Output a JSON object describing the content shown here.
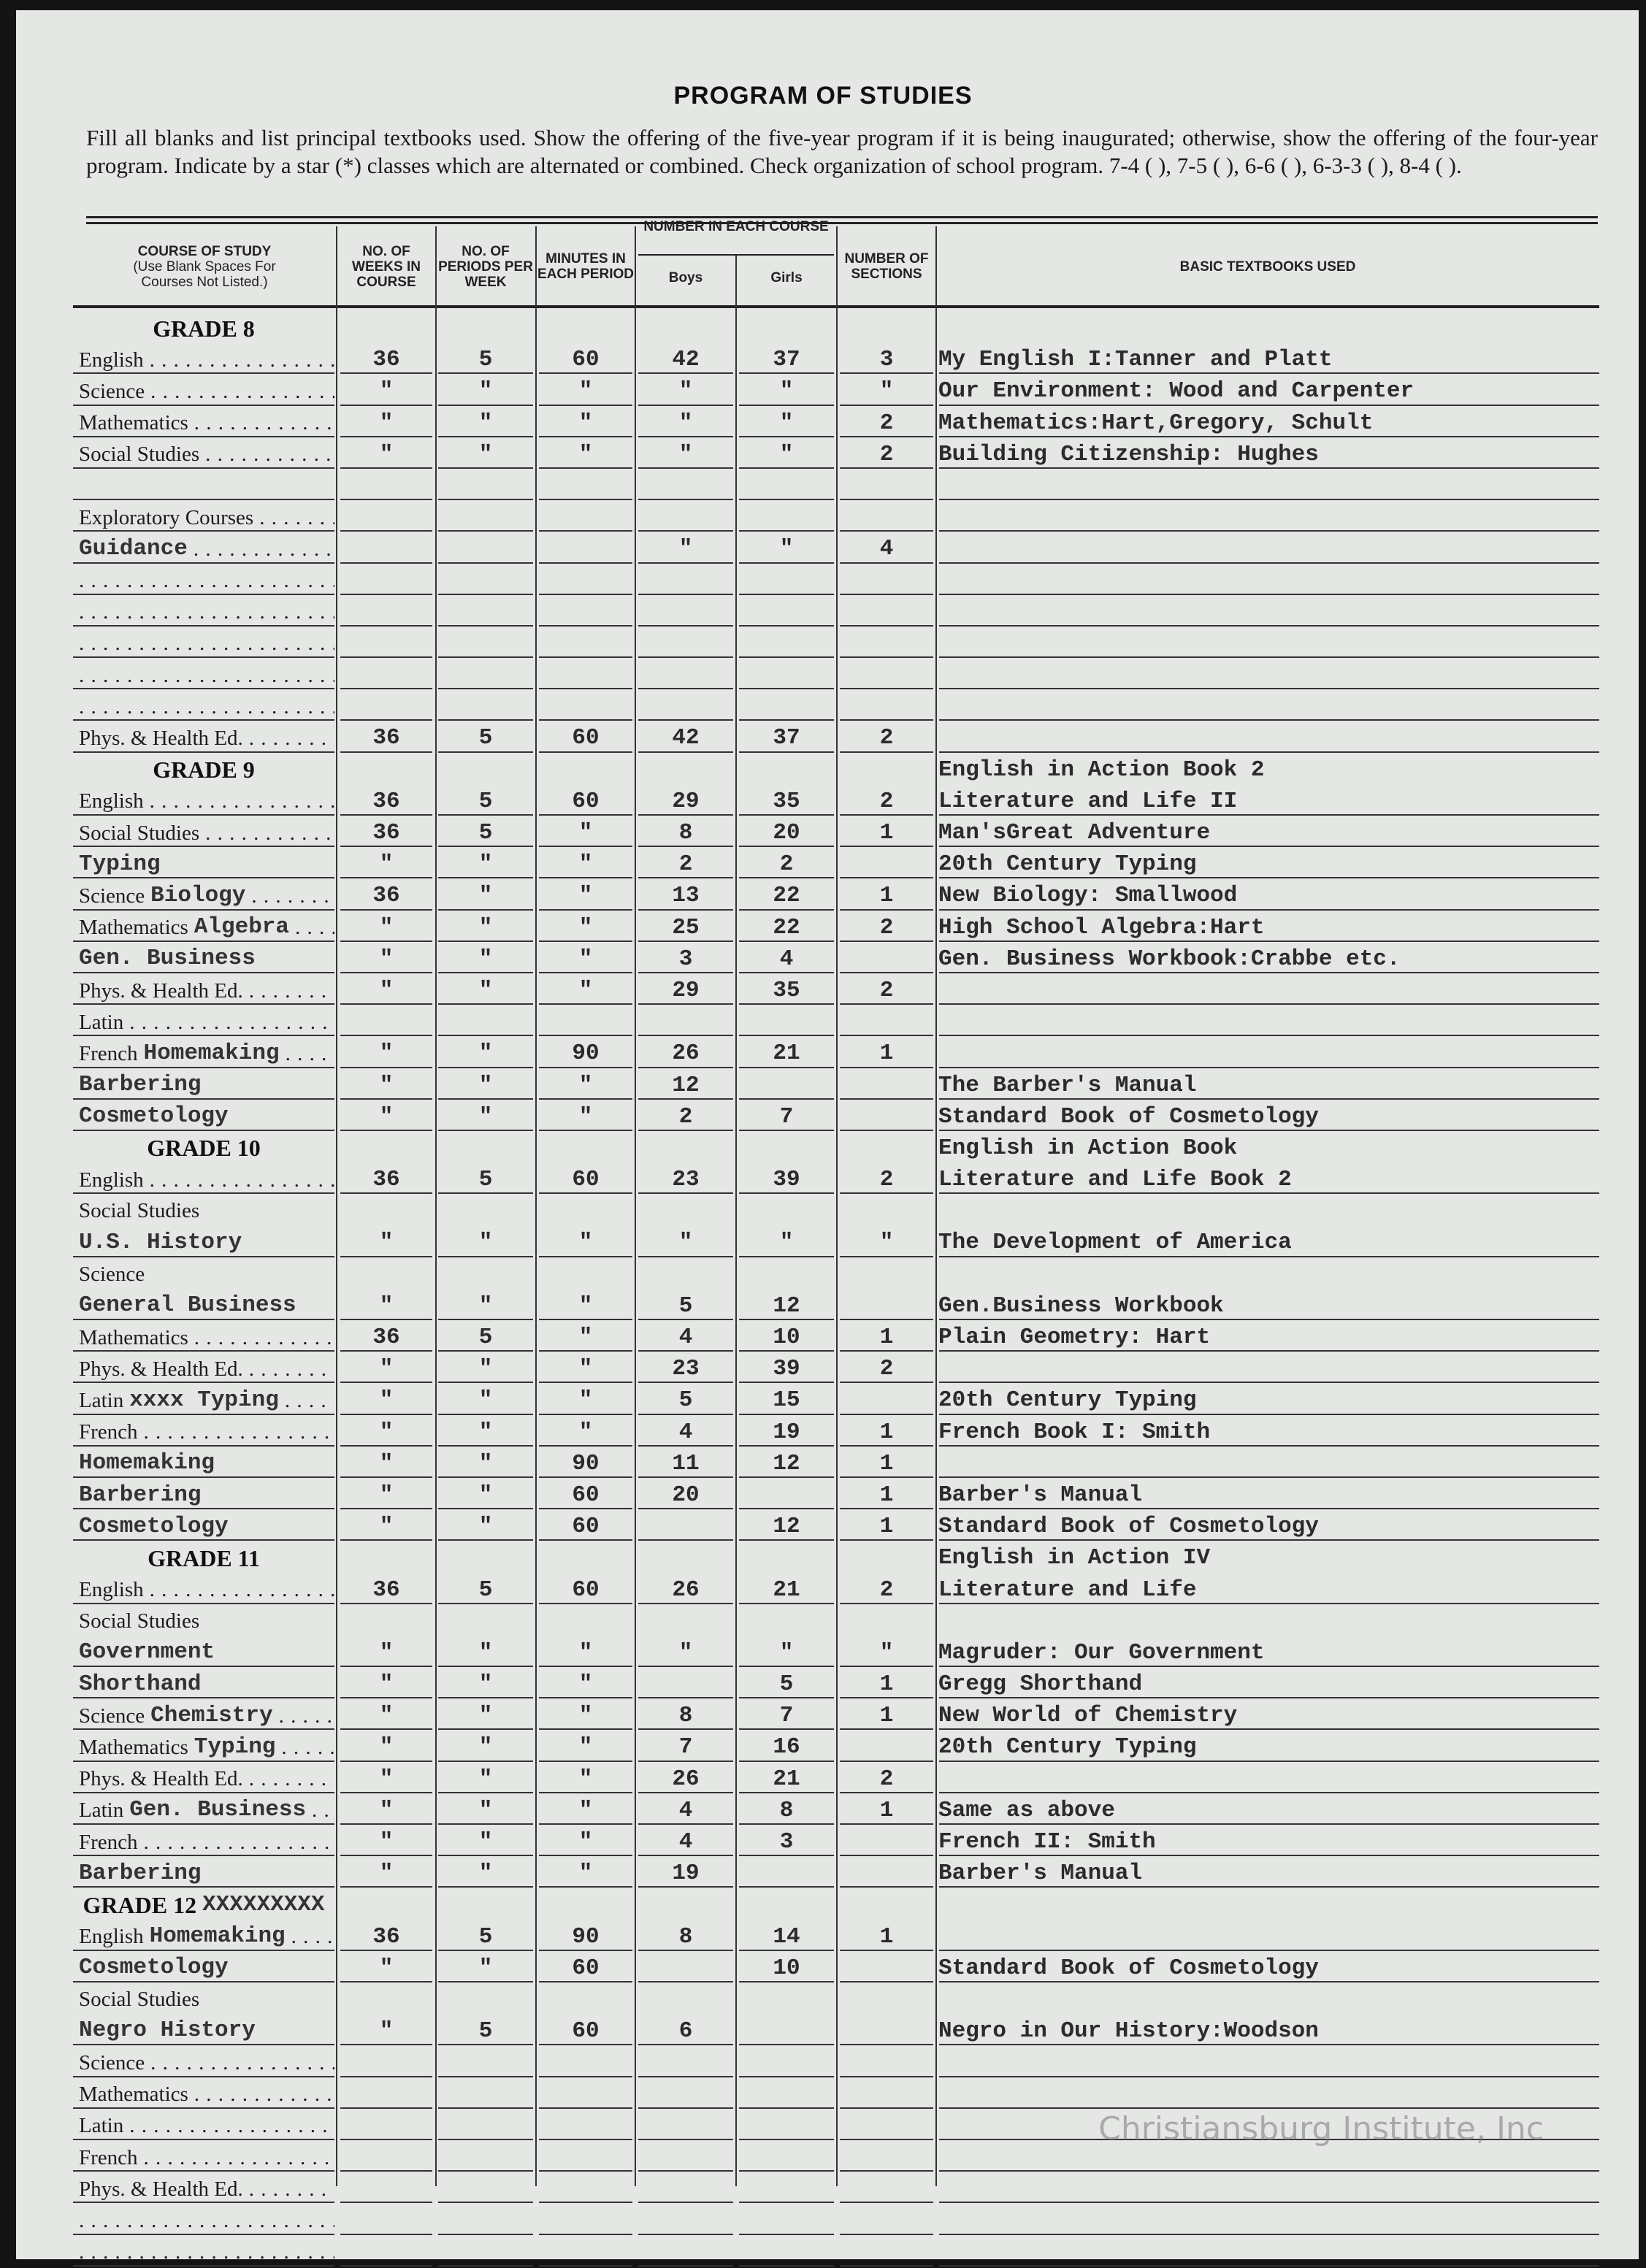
{
  "title": "PROGRAM OF STUDIES",
  "instructions": "Fill all blanks and list principal textbooks used. Show the offering of the five-year program if it is being inaugurated; otherwise, show the offering of the four-year program. Indicate by a star (*) classes which are alternated or combined. Check organization of school program. 7-4 (   ), 7-5 (   ), 6-6 (   ), 6-3-3 (   ), 8-4 (   ).",
  "headers": {
    "course": "COURSE OF STUDY",
    "course_note": "(Use Blank Spaces For Courses Not Listed.)",
    "weeks": "NO. OF WEEKS IN COURSE",
    "periods": "NO. OF PERIODS PER WEEK",
    "minutes": "MINUTES IN EACH PERIOD",
    "number_each": "NUMBER IN EACH COURSE",
    "boys": "Boys",
    "girls": "Girls",
    "sections": "NUMBER OF SECTIONS",
    "textbooks": "BASIC TEXTBOOKS USED"
  },
  "rows": [
    {
      "grade": "GRADE 8"
    },
    {
      "label": "English",
      "v": [
        "36",
        "5",
        "60",
        "42",
        "37",
        "3"
      ],
      "book": "My English I:Tanner and Platt"
    },
    {
      "label": "Science",
      "v": [
        "\"",
        "\"",
        "\"",
        "\"",
        "\"",
        "\""
      ],
      "book": "Our Environment: Wood and Carpenter"
    },
    {
      "label": "Mathematics",
      "v": [
        "\"",
        "\"",
        "\"",
        "\"",
        "\"",
        "2"
      ],
      "book": "Mathematics:Hart,Gregory, Schult"
    },
    {
      "label": "Social Studies",
      "v": [
        "\"",
        "\"",
        "\"",
        "\"",
        "\"",
        "2"
      ],
      "book": "Building Citizenship: Hughes"
    },
    {},
    {
      "label": "Exploratory Courses"
    },
    {
      "dots": true,
      "typed": "Guidance",
      "v": [
        "",
        "",
        "",
        "\"",
        "\"",
        "4"
      ]
    },
    {
      "dots": true
    },
    {
      "dots": true
    },
    {
      "dots": true
    },
    {
      "dots": true
    },
    {
      "dots": true
    },
    {
      "label": "Phys. & Health Ed.",
      "v": [
        "36",
        "5",
        "60",
        "42",
        "37",
        "2"
      ]
    },
    {
      "grade": "GRADE 9",
      "book": "English in Action Book 2"
    },
    {
      "label": "English",
      "v": [
        "36",
        "5",
        "60",
        "29",
        "35",
        "2"
      ],
      "book": "Literature and Life II"
    },
    {
      "label": "Social Studies",
      "v": [
        "36",
        "5",
        "\"",
        "8",
        "20",
        "1"
      ],
      "book": "Man'sGreat Adventure"
    },
    {
      "typed": "Typing",
      "v": [
        "\"",
        "\"",
        "\"",
        "2",
        "2",
        ""
      ],
      "book": "20th Century Typing"
    },
    {
      "label": "Science",
      "typed": "Biology",
      "v": [
        "36",
        "\"",
        "\"",
        "13",
        "22",
        "1"
      ],
      "book": "New Biology: Smallwood"
    },
    {
      "label": "Mathematics",
      "typed": "Algebra",
      "v": [
        "\"",
        "\"",
        "\"",
        "25",
        "22",
        "2"
      ],
      "book": "High School Algebra:Hart"
    },
    {
      "typed": "Gen. Business",
      "v": [
        "\"",
        "\"",
        "\"",
        "3",
        "4",
        ""
      ],
      "book": "Gen. Business Workbook:Crabbe etc."
    },
    {
      "label": "Phys. & Health Ed.",
      "v": [
        "\"",
        "\"",
        "\"",
        "29",
        "35",
        "2"
      ]
    },
    {
      "label": "Latin"
    },
    {
      "label": "French",
      "typed": "Homemaking",
      "v": [
        "\"",
        "\"",
        "90",
        "26",
        "21",
        "1"
      ]
    },
    {
      "typed": "Barbering",
      "v": [
        "\"",
        "\"",
        "\"",
        "12",
        "",
        ""
      ],
      "book": "The Barber's Manual"
    },
    {
      "typed": "Cosmetology",
      "v": [
        "\"",
        "\"",
        "\"",
        "2",
        "7",
        ""
      ],
      "book": "Standard Book of Cosmetology"
    },
    {
      "grade": "GRADE 10",
      "book": "English in Action Book"
    },
    {
      "label": "English",
      "v": [
        "36",
        "5",
        "60",
        "23",
        "39",
        "2"
      ],
      "book": "Literature and Life Book 2"
    },
    {
      "label": "Social Studies",
      "typed": "U.S. History",
      "v": [
        "\"",
        "\"",
        "\"",
        "\"",
        "\"",
        "\""
      ],
      "book": "The Development of America"
    },
    {
      "label": "Science",
      "typed": "General Business",
      "v": [
        "\"",
        "\"",
        "\"",
        "5",
        "12",
        ""
      ],
      "book": "Gen.Business Workbook"
    },
    {
      "label": "Mathematics",
      "v": [
        "36",
        "5",
        "\"",
        "4",
        "10",
        "1"
      ],
      "book": "Plain Geometry: Hart"
    },
    {
      "label": "Phys. & Health Ed.",
      "v": [
        "\"",
        "\"",
        "\"",
        "23",
        "39",
        "2"
      ]
    },
    {
      "label": "Latin",
      "typed": "xxxx Typing",
      "v": [
        "\"",
        "\"",
        "\"",
        "5",
        "15",
        ""
      ],
      "book": "20th Century Typing"
    },
    {
      "label": "French",
      "v": [
        "\"",
        "\"",
        "\"",
        "4",
        "19",
        "1"
      ],
      "book": "French Book I: Smith"
    },
    {
      "typed": "Homemaking",
      "v": [
        "\"",
        "\"",
        "90",
        "11",
        "12",
        "1"
      ]
    },
    {
      "typed": "Barbering",
      "v": [
        "\"",
        "\"",
        "60",
        "20",
        "",
        "1"
      ],
      "book": "Barber's Manual"
    },
    {
      "typed": "Cosmetology",
      "v": [
        "\"",
        "\"",
        "60",
        "",
        "12",
        "1"
      ],
      "book": "Standard Book of Cosmetology"
    },
    {
      "grade": "GRADE 11",
      "book": "English in Action IV"
    },
    {
      "label": "English",
      "v": [
        "36",
        "5",
        "60",
        "26",
        "21",
        "2"
      ],
      "book": "Literature and Life"
    },
    {
      "label": "Social Studies",
      "typed": "Government",
      "v": [
        "\"",
        "\"",
        "\"",
        "\"",
        "\"",
        "\""
      ],
      "book": "Magruder: Our Government"
    },
    {
      "typed": "Shorthand",
      "v": [
        "\"",
        "\"",
        "\"",
        "",
        "5",
        "1"
      ],
      "book": "Gregg Shorthand"
    },
    {
      "label": "Science",
      "typed": "Chemistry",
      "v": [
        "\"",
        "\"",
        "\"",
        "8",
        "7",
        "1"
      ],
      "book": "New World of Chemistry"
    },
    {
      "label": "Mathematics",
      "typed": "Typing",
      "v": [
        "\"",
        "\"",
        "\"",
        "7",
        "16",
        ""
      ],
      "book": "20th Century Typing"
    },
    {
      "label": "Phys. & Health Ed.",
      "v": [
        "\"",
        "\"",
        "\"",
        "26",
        "21",
        "2"
      ]
    },
    {
      "label": "Latin",
      "typed": "Gen. Business",
      "v": [
        "\"",
        "\"",
        "\"",
        "4",
        "8",
        "1"
      ],
      "book": "Same as above"
    },
    {
      "label": "French",
      "v": [
        "\"",
        "\"",
        "\"",
        "4",
        "3",
        ""
      ],
      "book": "French II: Smith"
    },
    {
      "typed": "Barbering",
      "v": [
        "\"",
        "\"",
        "\"",
        "19",
        "",
        ""
      ],
      "book": "Barber's Manual"
    },
    {
      "grade": "GRADE 12",
      "typed": "XXXXXXXXX"
    },
    {
      "label": "English",
      "typed": "Homemaking",
      "v": [
        "36",
        "5",
        "90",
        "8",
        "14",
        "1"
      ]
    },
    {
      "typed": "Cosmetology",
      "v": [
        "\"",
        "\"",
        "60",
        "",
        "10",
        ""
      ],
      "book": "Standard Book of Cosmetology"
    },
    {
      "label": "Social Studies",
      "typed": "Negro History",
      "v": [
        "\"",
        "5",
        "60",
        "6",
        "",
        ""
      ],
      "book": "Negro in Our History:Woodson"
    },
    {
      "label": "Science"
    },
    {
      "label": "Mathematics"
    },
    {
      "label": "Latin"
    },
    {
      "label": "French"
    },
    {
      "label": "Phys. & Health Ed."
    },
    {
      "dots": true
    },
    {
      "dots": true
    }
  ],
  "watermark": "Christiansburg Institute, Inc"
}
